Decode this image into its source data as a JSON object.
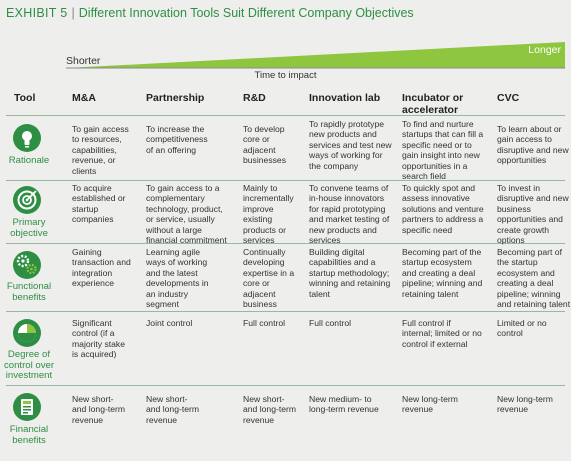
{
  "exhibit": {
    "label": "EXHIBIT 5",
    "separator": "|",
    "title": "Different Innovation Tools Suit Different Company Objectives"
  },
  "time_axis": {
    "shorter": "Shorter",
    "longer": "Longer",
    "label": "Time to impact"
  },
  "columns": {
    "tool": "Tool",
    "items": [
      "M&A",
      "Partnership",
      "R&D",
      "Innovation lab",
      "Incubator or\naccelerator",
      "CVC"
    ]
  },
  "rows": [
    {
      "label": "Rationale",
      "icon": "lightbulb-icon",
      "cells": [
        "To gain access\nto resources,\ncapabilities,\nrevenue, or\nclients",
        "To increase the\ncompetitiveness\nof an offering",
        "To develop\ncore or\nadjacent\nbusinesses",
        "To rapidly prototype\nnew products and\nservices and test new\nways of working for\nthe company",
        "To find and nurture\nstartups that can fill a\nspecific need or to\ngain insight into new\nopportunities in a\nsearch field",
        "To learn about or\ngain access to\ndisruptive and new\nopportunities"
      ]
    },
    {
      "label": "Primary\nobjective",
      "icon": "target-icon",
      "cells": [
        "To acquire\nestablished or\nstartup\ncompanies",
        "To gain access to a\ncomplementary\ntechnology, product,\nor service, usually\nwithout a large\nfinancial commitment",
        "Mainly to\nincrementally\nimprove\nexisting\nproducts or\nservices",
        "To convene teams of\nin-house innovators\nfor rapid prototyping\nand market testing of\nnew products and\nservices",
        "To quickly spot and\nassess innovative\nsolutions and venture\npartners to address a\nspecific need",
        "To invest in\ndisruptive and new\nbusiness\nopportunities and\ncreate growth\noptions"
      ]
    },
    {
      "label": "Functional\nbenefits",
      "icon": "gears-icon",
      "cells": [
        "Gaining\ntransaction and\nintegration\nexperience",
        "Learning agile\nways of working\nand the latest\ndevelopments in\nan industry\nsegment",
        "Continually\ndeveloping\nexpertise in a\ncore or\nadjacent\nbusiness",
        "Building digital\ncapabilities and a\nstartup methodology;\nwinning and retaining\ntalent",
        "Becoming part of the\nstartup ecosystem\nand creating a deal\npipeline; winning and\nretaining talent",
        "Becoming part of\nthe startup\necosystem and\ncreating a deal\npipeline; winning\nand retaining talent"
      ]
    },
    {
      "label": "Degree of\ncontrol over\ninvestment",
      "icon": "pie-chart-icon",
      "cells": [
        "Significant\ncontrol (if a\nmajority stake\nis acquired)",
        "Joint control",
        "Full control",
        "Full control",
        "Full control if\ninternal; limited or no\ncontrol if external",
        "Limited or no\ncontrol"
      ]
    },
    {
      "label": "Financial\nbenefits",
      "icon": "money-icon",
      "cells": [
        "New short-\nand long-term\nrevenue",
        "New short-\nand long-term\nrevenue",
        "New short-\nand long-term\nrevenue",
        "New medium- to\nlong-term revenue",
        "New long-term\nrevenue",
        "New long-term\nrevenue"
      ]
    }
  ],
  "colors": {
    "brand_green": "#2e8f44",
    "light_green": "#8ec63f",
    "background": "#eeeeec"
  }
}
